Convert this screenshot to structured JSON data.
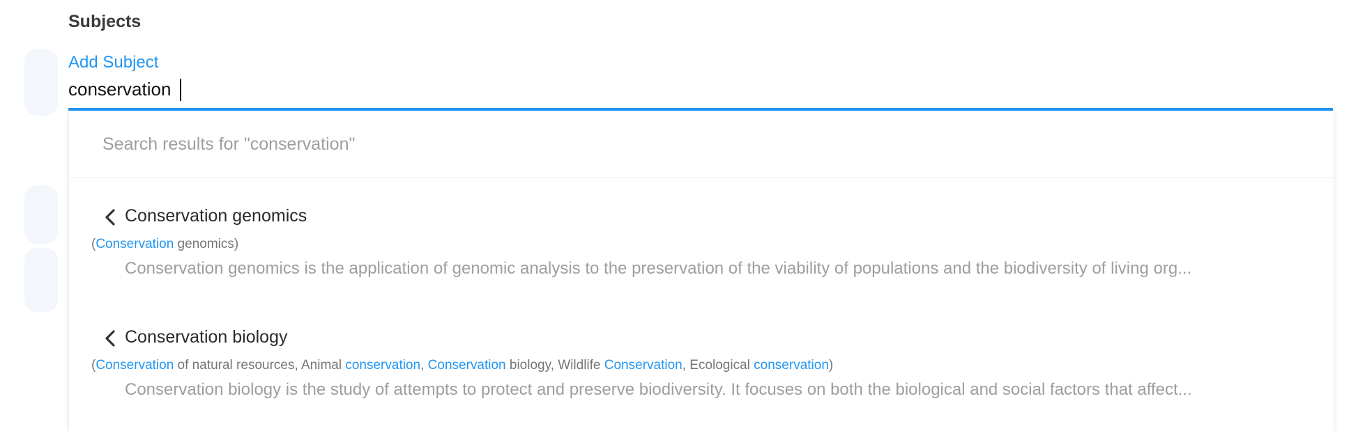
{
  "section": {
    "title": "Subjects"
  },
  "subject_field": {
    "label": "Add Subject",
    "value": "conservation"
  },
  "dropdown": {
    "header": "Search results for \"conservation\"",
    "results": [
      {
        "title": "Conservation genomics",
        "synonyms_open": "(",
        "synonyms_close": ")",
        "synonyms": [
          {
            "text": "Conservation",
            "highlight": true
          },
          {
            "text": " genomics",
            "highlight": false
          }
        ],
        "description": "Conservation genomics is the application of genomic analysis to the preservation of the viability of populations and the biodiversity of living org..."
      },
      {
        "title": "Conservation biology",
        "synonyms_open": "(",
        "synonyms_close": ")",
        "synonyms": [
          {
            "text": "Conservation",
            "highlight": true
          },
          {
            "text": " of natural resources, Animal ",
            "highlight": false
          },
          {
            "text": "conservation",
            "highlight": true
          },
          {
            "text": ", ",
            "highlight": false
          },
          {
            "text": "Conservation",
            "highlight": true
          },
          {
            "text": " biology, Wildlife ",
            "highlight": false
          },
          {
            "text": "Conservation",
            "highlight": true
          },
          {
            "text": ", Ecological ",
            "highlight": false
          },
          {
            "text": "conservation",
            "highlight": true
          }
        ],
        "description": "Conservation biology is the study of attempts to protect and preserve biodiversity. It focuses on both the biological and social factors that affect..."
      }
    ]
  },
  "colors": {
    "accent": "#2196f3",
    "heading": "#3a3a3a",
    "muted": "#9e9e9e",
    "ghost": "#f3f7fc"
  },
  "icons": {
    "result_expand": "chevron-left-icon"
  }
}
